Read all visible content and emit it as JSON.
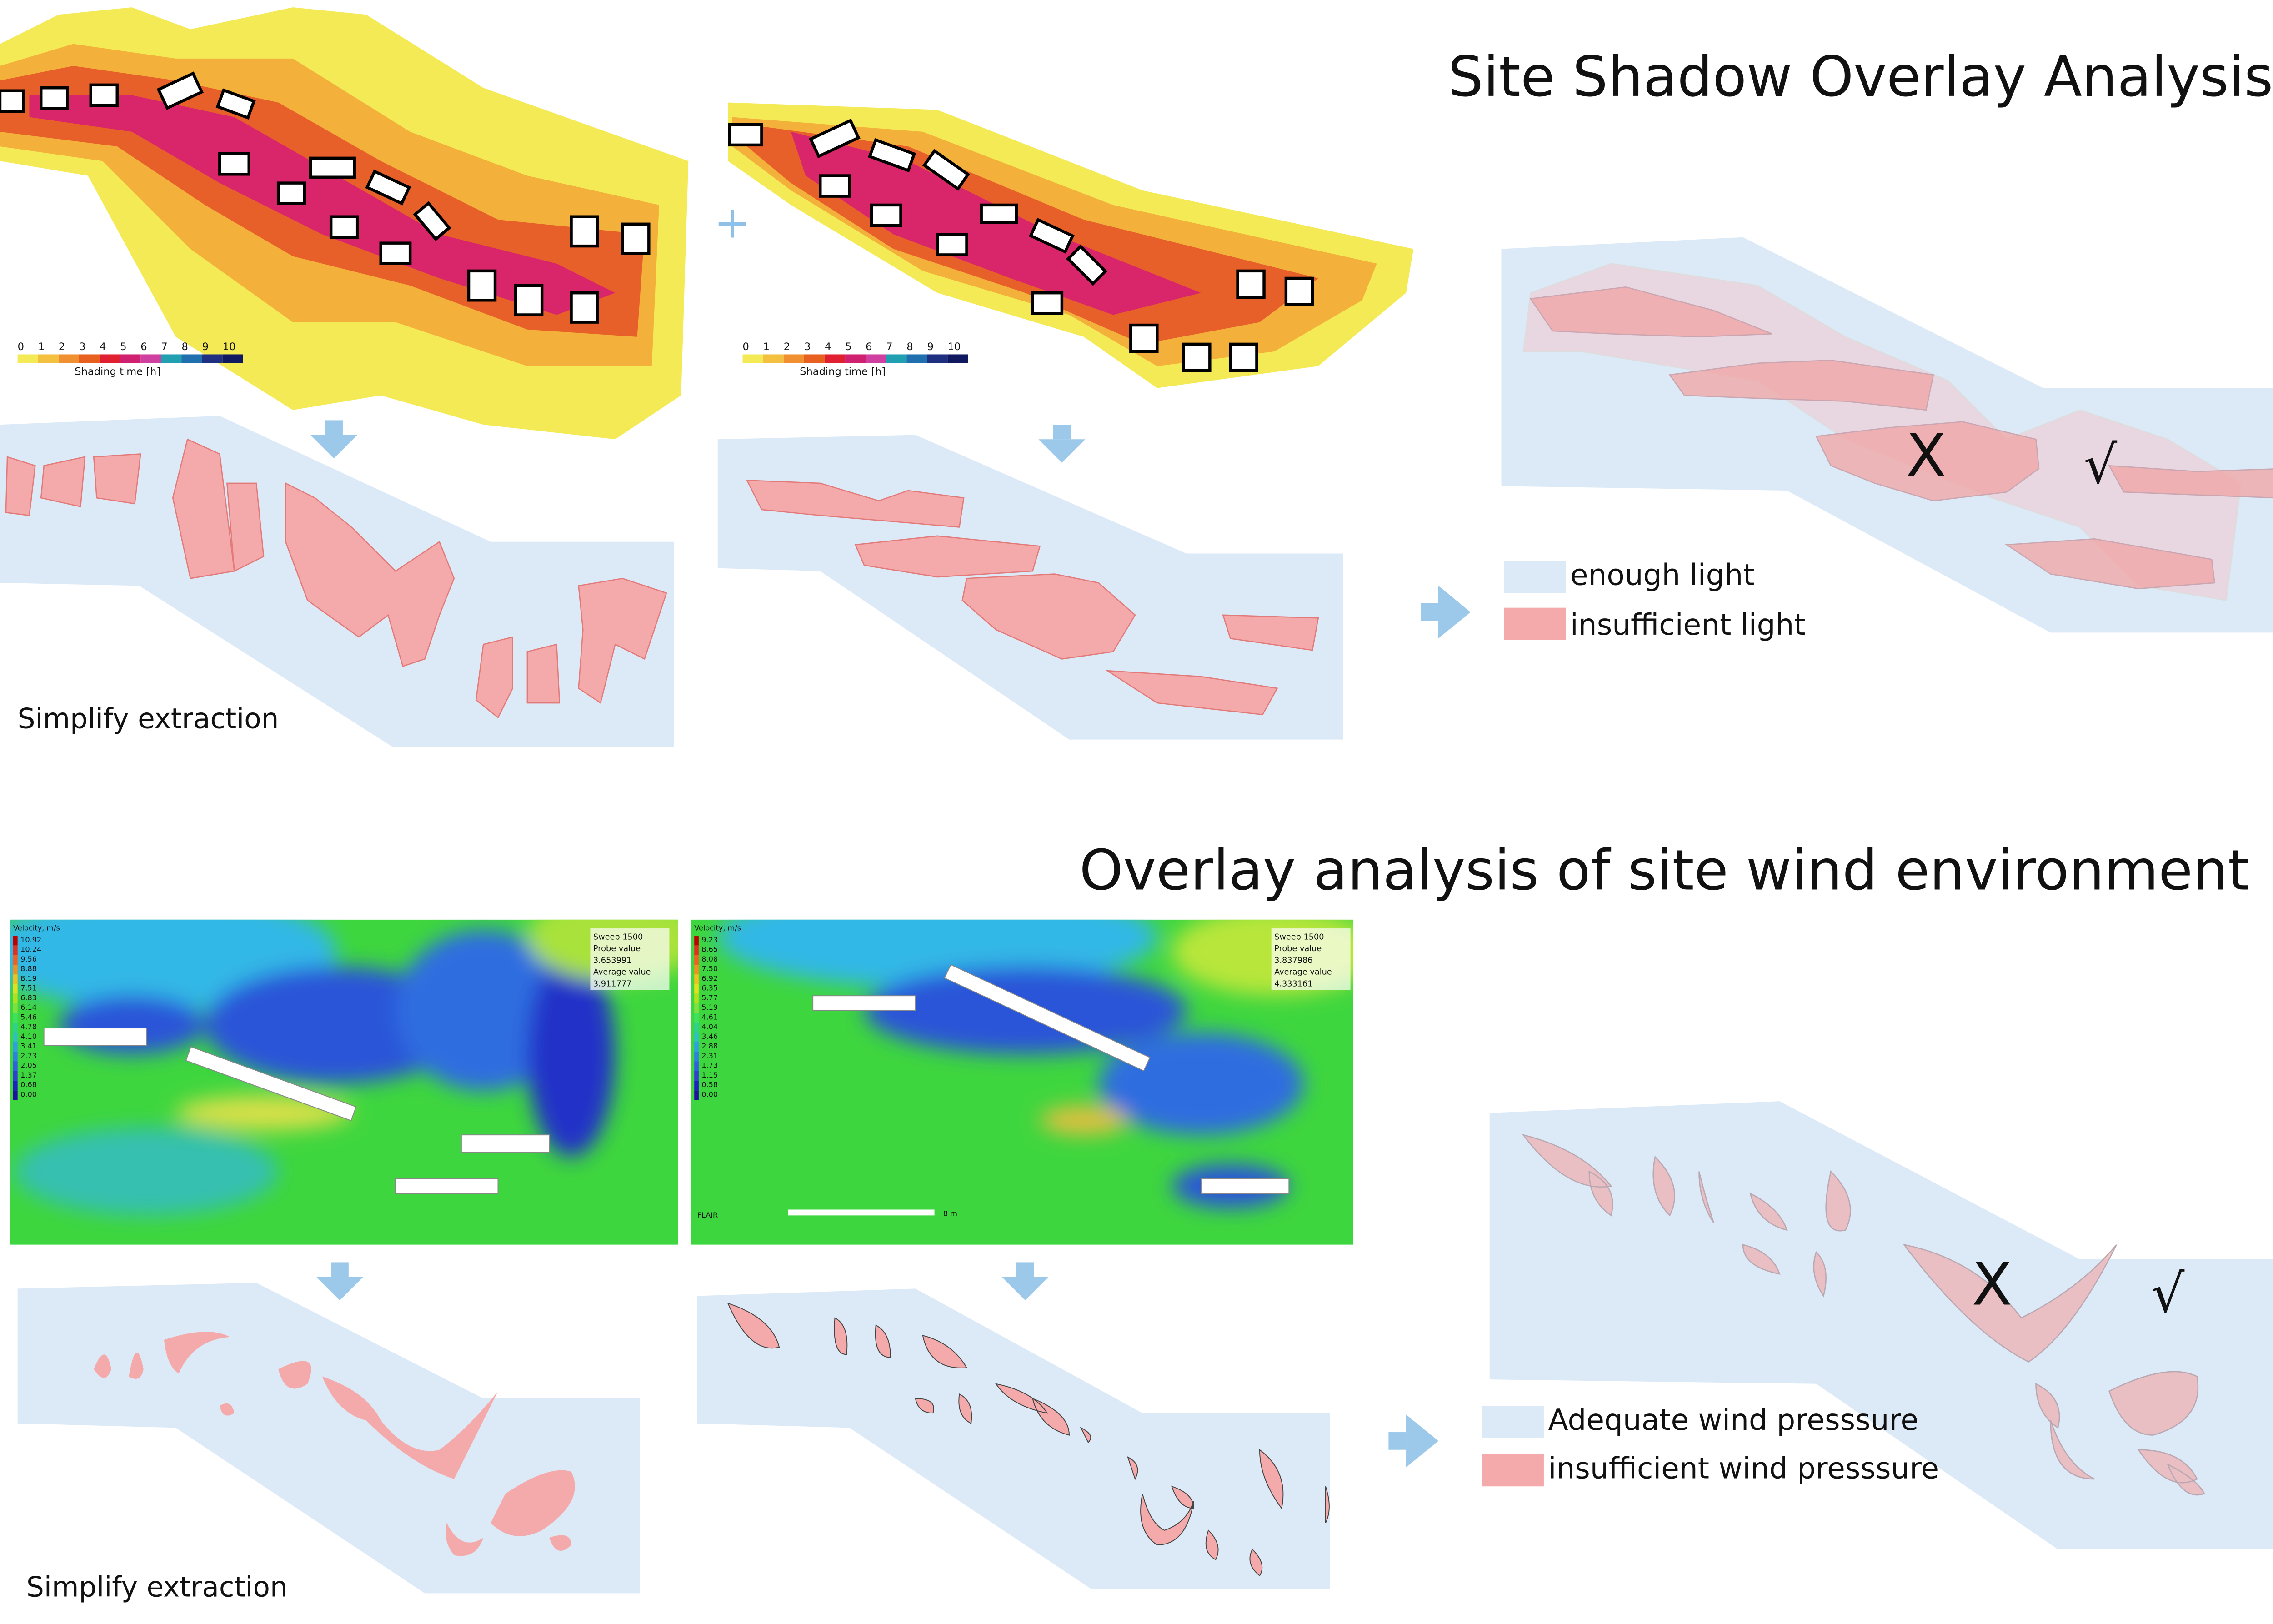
{
  "shadow": {
    "title": "Site Shadow Overlay Analysis",
    "scale": {
      "ticks": [
        "0",
        "1",
        "2",
        "3",
        "4",
        "5",
        "6",
        "7",
        "8",
        "9",
        "10"
      ],
      "label": "Shading time [h]"
    },
    "plus": "+",
    "extraction_label": "Simplify extraction",
    "legend": [
      "enough light",
      "insufficient light"
    ],
    "marks": [
      "X",
      "√"
    ]
  },
  "wind": {
    "title": "Overlay analysis of site wind environment",
    "panels": [
      {
        "legend_title": "Velocity, m/s",
        "legend_values": [
          "10.92",
          "10.24",
          "9.56",
          "8.88",
          "8.19",
          "7.51",
          "6.83",
          "6.14",
          "5.46",
          "4.78",
          "4.10",
          "3.41",
          "2.73",
          "2.05",
          "1.37",
          "0.68",
          "0.00"
        ],
        "probe": [
          "Sweep 1500",
          "Probe value",
          "3.653991",
          "Average value",
          "3.911777"
        ]
      },
      {
        "legend_title": "Velocity, m/s",
        "legend_values": [
          "9.23",
          "8.65",
          "8.08",
          "7.50",
          "6.92",
          "6.35",
          "5.77",
          "5.19",
          "4.61",
          "4.04",
          "3.46",
          "2.88",
          "2.31",
          "1.73",
          "1.15",
          "0.58",
          "0.00"
        ],
        "probe": [
          "Sweep 1500",
          "Probe value",
          "3.837986",
          "Average value",
          "4.333161"
        ],
        "footer": "FLAIR",
        "scale_bar": "8 m"
      }
    ],
    "extraction_label": "Simplify extraction",
    "legend": [
      "Adequate wind presssure",
      "insufficient wind presssure"
    ],
    "marks": [
      "X",
      "√"
    ]
  }
}
